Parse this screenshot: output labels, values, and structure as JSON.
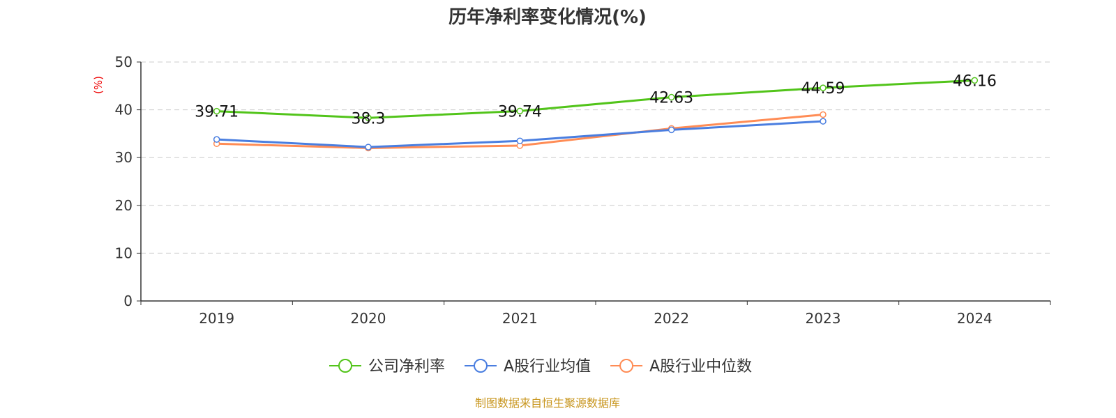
{
  "chart_data": {
    "type": "line",
    "title": "历年净利率变化情况(%)",
    "ylabel": "(%)",
    "categories": [
      "2019",
      "2020",
      "2021",
      "2022",
      "2023",
      "2024"
    ],
    "ylim": [
      0,
      50
    ],
    "yticks": [
      0,
      10,
      20,
      30,
      40,
      50
    ],
    "grid": true,
    "legend_placement": "bottom",
    "series": [
      {
        "name": "公司净利率",
        "color": "#52c41a",
        "values": [
          39.71,
          38.3,
          39.74,
          42.63,
          44.59,
          46.16
        ],
        "labels": true
      },
      {
        "name": "A股行业均值",
        "color": "#4a7ee0",
        "values": [
          33.8,
          32.2,
          33.5,
          35.8,
          37.6,
          null
        ]
      },
      {
        "name": "A股行业中位数",
        "color": "#ff8c55",
        "values": [
          32.9,
          32.0,
          32.5,
          36.1,
          39.0,
          null
        ]
      }
    ],
    "source": "制图数据来自恒生聚源数据库"
  }
}
